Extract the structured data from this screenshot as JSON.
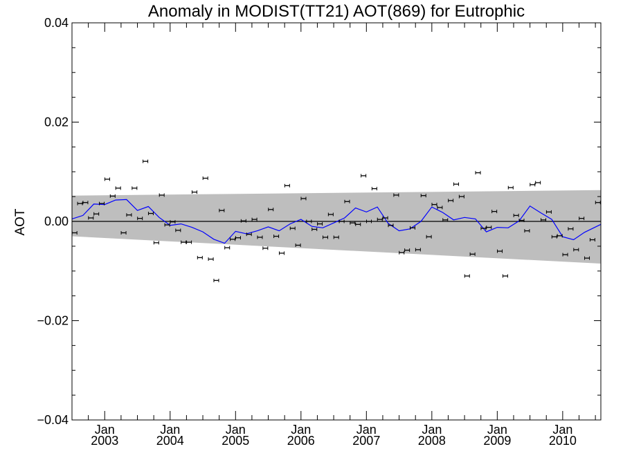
{
  "chart_data": {
    "type": "scatter",
    "title": "Anomaly in MODIST(TT21) AOT(869) for Eutrophic",
    "ylabel": "AOT",
    "xlabel": "",
    "xlim": [
      "2002-07-01",
      "2010-08-01"
    ],
    "ylim": [
      -0.04,
      0.04
    ],
    "y_ticks": [
      {
        "value": 0.04,
        "label": "0.04"
      },
      {
        "value": 0.02,
        "label": "0.02"
      },
      {
        "value": 0.0,
        "label": "0.00"
      },
      {
        "value": -0.02,
        "label": "−0.02"
      },
      {
        "value": -0.04,
        "label": "−0.04"
      }
    ],
    "x_ticks": [
      {
        "date": "2003-01-01",
        "month": "Jan",
        "year": "2003"
      },
      {
        "date": "2004-01-01",
        "month": "Jan",
        "year": "2004"
      },
      {
        "date": "2005-01-01",
        "month": "Jan",
        "year": "2005"
      },
      {
        "date": "2006-01-01",
        "month": "Jan",
        "year": "2006"
      },
      {
        "date": "2007-01-01",
        "month": "Jan",
        "year": "2007"
      },
      {
        "date": "2008-01-01",
        "month": "Jan",
        "year": "2008"
      },
      {
        "date": "2009-01-01",
        "month": "Jan",
        "year": "2009"
      },
      {
        "date": "2010-01-01",
        "month": "Jan",
        "year": "2010"
      }
    ],
    "grid": false,
    "legend": "none",
    "confidence_band": {
      "start": {
        "x": "2002-07-01",
        "upper": 0.0052,
        "lower": -0.003
      },
      "end": {
        "x": "2010-08-01",
        "upper": 0.0063,
        "lower": -0.0085
      },
      "color": "#bebebe"
    },
    "zero_line": 0.0,
    "series": [
      {
        "kind": "monthly_anomaly_with_error_bars",
        "color": "#000000",
        "points": [
          {
            "x": "2002-07",
            "y": -0.0023
          },
          {
            "x": "2002-08",
            "y": 0.0036
          },
          {
            "x": "2002-09",
            "y": 0.0038
          },
          {
            "x": "2002-10",
            "y": 0.0007
          },
          {
            "x": "2002-11",
            "y": 0.0015
          },
          {
            "x": "2002-12",
            "y": 0.0036
          },
          {
            "x": "2003-01",
            "y": 0.0085
          },
          {
            "x": "2003-02",
            "y": 0.0051
          },
          {
            "x": "2003-03",
            "y": 0.0067
          },
          {
            "x": "2003-04",
            "y": -0.0023
          },
          {
            "x": "2003-05",
            "y": 0.0013
          },
          {
            "x": "2003-06",
            "y": 0.0067
          },
          {
            "x": "2003-07",
            "y": 0.0006
          },
          {
            "x": "2003-08",
            "y": 0.0121
          },
          {
            "x": "2003-09",
            "y": 0.0016
          },
          {
            "x": "2003-10",
            "y": -0.0043
          },
          {
            "x": "2003-11",
            "y": 0.0053
          },
          {
            "x": "2003-12",
            "y": -0.0007
          },
          {
            "x": "2004-01",
            "y": -0.0001
          },
          {
            "x": "2004-02",
            "y": -0.0018
          },
          {
            "x": "2004-03",
            "y": -0.0042
          },
          {
            "x": "2004-04",
            "y": -0.0042
          },
          {
            "x": "2004-05",
            "y": 0.0059
          },
          {
            "x": "2004-06",
            "y": -0.0073
          },
          {
            "x": "2004-07",
            "y": 0.0087
          },
          {
            "x": "2004-08",
            "y": -0.0076
          },
          {
            "x": "2004-09",
            "y": -0.0119
          },
          {
            "x": "2004-10",
            "y": 0.0022
          },
          {
            "x": "2004-11",
            "y": -0.0053
          },
          {
            "x": "2004-12",
            "y": -0.0036
          },
          {
            "x": "2005-01",
            "y": -0.0033
          },
          {
            "x": "2005-02",
            "y": 0.0001
          },
          {
            "x": "2005-03",
            "y": -0.0026
          },
          {
            "x": "2005-04",
            "y": 0.0004
          },
          {
            "x": "2005-05",
            "y": -0.0032
          },
          {
            "x": "2005-06",
            "y": -0.0054
          },
          {
            "x": "2005-07",
            "y": 0.0024
          },
          {
            "x": "2005-08",
            "y": -0.003
          },
          {
            "x": "2005-09",
            "y": -0.0064
          },
          {
            "x": "2005-10",
            "y": 0.0072
          },
          {
            "x": "2005-11",
            "y": -0.0014
          },
          {
            "x": "2005-12",
            "y": -0.0048
          },
          {
            "x": "2006-01",
            "y": 0.0046
          },
          {
            "x": "2006-02",
            "y": 0.0
          },
          {
            "x": "2006-03",
            "y": -0.0016
          },
          {
            "x": "2006-04",
            "y": -0.0005
          },
          {
            "x": "2006-05",
            "y": -0.0032
          },
          {
            "x": "2006-06",
            "y": 0.0014
          },
          {
            "x": "2006-07",
            "y": -0.0032
          },
          {
            "x": "2006-08",
            "y": 0.0
          },
          {
            "x": "2006-09",
            "y": 0.004
          },
          {
            "x": "2006-10",
            "y": -0.0003
          },
          {
            "x": "2006-11",
            "y": -0.0006
          },
          {
            "x": "2006-12",
            "y": 0.0092
          },
          {
            "x": "2007-01",
            "y": 0.0
          },
          {
            "x": "2007-02",
            "y": 0.0066
          },
          {
            "x": "2007-03",
            "y": 0.0004
          },
          {
            "x": "2007-04",
            "y": 0.0007
          },
          {
            "x": "2007-05",
            "y": -0.0008
          },
          {
            "x": "2007-06",
            "y": 0.0053
          },
          {
            "x": "2007-07",
            "y": -0.0063
          },
          {
            "x": "2007-08",
            "y": -0.0058
          },
          {
            "x": "2007-09",
            "y": -0.0013
          },
          {
            "x": "2007-10",
            "y": -0.0057
          },
          {
            "x": "2007-11",
            "y": 0.0052
          },
          {
            "x": "2007-12",
            "y": -0.0031
          },
          {
            "x": "2008-01",
            "y": 0.0034
          },
          {
            "x": "2008-02",
            "y": 0.0028
          },
          {
            "x": "2008-03",
            "y": 0.0003
          },
          {
            "x": "2008-04",
            "y": 0.0042
          },
          {
            "x": "2008-05",
            "y": 0.0075
          },
          {
            "x": "2008-06",
            "y": 0.005
          },
          {
            "x": "2008-07",
            "y": -0.011
          },
          {
            "x": "2008-08",
            "y": -0.0066
          },
          {
            "x": "2008-09",
            "y": 0.0098
          },
          {
            "x": "2008-10",
            "y": -0.0014
          },
          {
            "x": "2008-11",
            "y": -0.0012
          },
          {
            "x": "2008-12",
            "y": 0.002
          },
          {
            "x": "2009-01",
            "y": -0.006
          },
          {
            "x": "2009-02",
            "y": -0.011
          },
          {
            "x": "2009-03",
            "y": 0.0068
          },
          {
            "x": "2009-04",
            "y": 0.0012
          },
          {
            "x": "2009-05",
            "y": 0.0002
          },
          {
            "x": "2009-06",
            "y": -0.0019
          },
          {
            "x": "2009-07",
            "y": 0.0074
          },
          {
            "x": "2009-08",
            "y": 0.0078
          },
          {
            "x": "2009-09",
            "y": 0.0003
          },
          {
            "x": "2009-10",
            "y": 0.0019
          },
          {
            "x": "2009-11",
            "y": -0.0031
          },
          {
            "x": "2009-12",
            "y": -0.0029
          },
          {
            "x": "2010-01",
            "y": -0.0067
          },
          {
            "x": "2010-02",
            "y": -0.0015
          },
          {
            "x": "2010-03",
            "y": -0.0057
          },
          {
            "x": "2010-04",
            "y": 0.0006
          },
          {
            "x": "2010-05",
            "y": -0.0074
          },
          {
            "x": "2010-06",
            "y": -0.0037
          },
          {
            "x": "2010-07",
            "y": 0.0038
          }
        ]
      },
      {
        "kind": "running_mean",
        "color": "#0000ff",
        "points": [
          {
            "x": "2002-07",
            "y": 0.0005
          },
          {
            "x": "2002-09",
            "y": 0.0012
          },
          {
            "x": "2002-11",
            "y": 0.0035
          },
          {
            "x": "2003-01",
            "y": 0.0034
          },
          {
            "x": "2003-03",
            "y": 0.0043
          },
          {
            "x": "2003-05",
            "y": 0.0044
          },
          {
            "x": "2003-07",
            "y": 0.0022
          },
          {
            "x": "2003-09",
            "y": 0.003
          },
          {
            "x": "2003-11",
            "y": 0.0008
          },
          {
            "x": "2004-01",
            "y": -0.0008
          },
          {
            "x": "2004-03",
            "y": -0.0005
          },
          {
            "x": "2004-05",
            "y": -0.0012
          },
          {
            "x": "2004-07",
            "y": -0.0021
          },
          {
            "x": "2004-09",
            "y": -0.0036
          },
          {
            "x": "2004-11",
            "y": -0.0044
          },
          {
            "x": "2005-01",
            "y": -0.002
          },
          {
            "x": "2005-03",
            "y": -0.0025
          },
          {
            "x": "2005-05",
            "y": -0.0019
          },
          {
            "x": "2005-07",
            "y": -0.0011
          },
          {
            "x": "2005-09",
            "y": -0.0019
          },
          {
            "x": "2005-11",
            "y": -0.0005
          },
          {
            "x": "2006-01",
            "y": 0.0004
          },
          {
            "x": "2006-03",
            "y": -0.001
          },
          {
            "x": "2006-05",
            "y": -0.0013
          },
          {
            "x": "2006-07",
            "y": -0.0003
          },
          {
            "x": "2006-09",
            "y": 0.0007
          },
          {
            "x": "2006-11",
            "y": 0.0027
          },
          {
            "x": "2007-01",
            "y": 0.0019
          },
          {
            "x": "2007-03",
            "y": 0.0029
          },
          {
            "x": "2007-05",
            "y": -0.0004
          },
          {
            "x": "2007-07",
            "y": -0.0019
          },
          {
            "x": "2007-09",
            "y": -0.0015
          },
          {
            "x": "2007-11",
            "y": 0.0
          },
          {
            "x": "2008-01",
            "y": 0.0029
          },
          {
            "x": "2008-03",
            "y": 0.0018
          },
          {
            "x": "2008-05",
            "y": 0.0003
          },
          {
            "x": "2008-07",
            "y": 0.0008
          },
          {
            "x": "2008-09",
            "y": 0.0005
          },
          {
            "x": "2008-11",
            "y": -0.0021
          },
          {
            "x": "2009-01",
            "y": -0.0012
          },
          {
            "x": "2009-03",
            "y": -0.0013
          },
          {
            "x": "2009-05",
            "y": 0.0001
          },
          {
            "x": "2009-07",
            "y": 0.0031
          },
          {
            "x": "2009-09",
            "y": 0.0017
          },
          {
            "x": "2009-11",
            "y": 0.0004
          },
          {
            "x": "2010-01",
            "y": -0.0031
          },
          {
            "x": "2010-03",
            "y": -0.0037
          },
          {
            "x": "2010-05",
            "y": -0.0022
          },
          {
            "x": "2010-08",
            "y": -0.0006
          }
        ]
      }
    ]
  }
}
